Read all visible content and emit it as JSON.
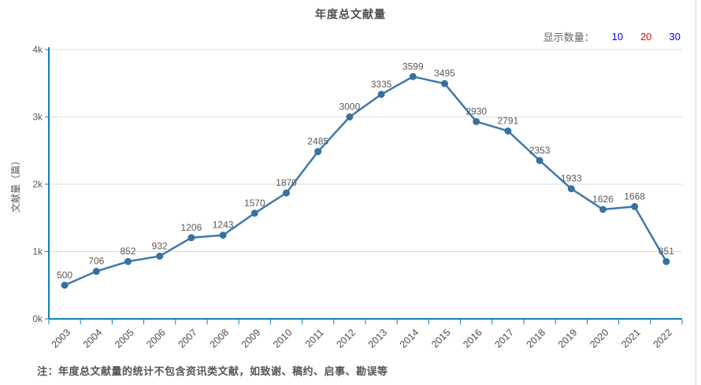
{
  "chart": {
    "title": "年度总文献量"
  },
  "controls": {
    "label": "显示数量：",
    "options": [
      {
        "label": "10",
        "color": "#0000ff",
        "selected": false
      },
      {
        "label": "20",
        "color": "#ff0000",
        "selected": true
      },
      {
        "label": "30",
        "color": "#0000ff",
        "selected": false
      }
    ]
  },
  "note": "注：年度总文献量的统计不包含资讯类文献，如致谢、稿约、启事、勘误等",
  "chart_data": {
    "type": "line",
    "title": "年度总文献量",
    "categories": [
      "2003",
      "2004",
      "2005",
      "2006",
      "2007",
      "2008",
      "2009",
      "2010",
      "2011",
      "2012",
      "2013",
      "2014",
      "2015",
      "2016",
      "2017",
      "2018",
      "2019",
      "2020",
      "2021",
      "2022"
    ],
    "values": [
      500,
      706,
      852,
      932,
      1206,
      1243,
      1570,
      1870,
      2485,
      3000,
      3335,
      3599,
      3495,
      2930,
      2791,
      2353,
      1933,
      1626,
      1668,
      851
    ],
    "xlabel": "",
    "ylabel": "文献量（篇）",
    "ylim": [
      0,
      4000
    ],
    "ytick_labels": [
      "0k",
      "1k",
      "2k",
      "3k",
      "4k"
    ],
    "grid": true,
    "legend": "none",
    "colors": {
      "line": "#3e79ac",
      "point": "#38719f",
      "axis": "#1080bf",
      "gridline": "#dcdcdc",
      "value_label": "#595959",
      "tick_label": "#595959",
      "category_label": "#4d4d4d"
    }
  }
}
